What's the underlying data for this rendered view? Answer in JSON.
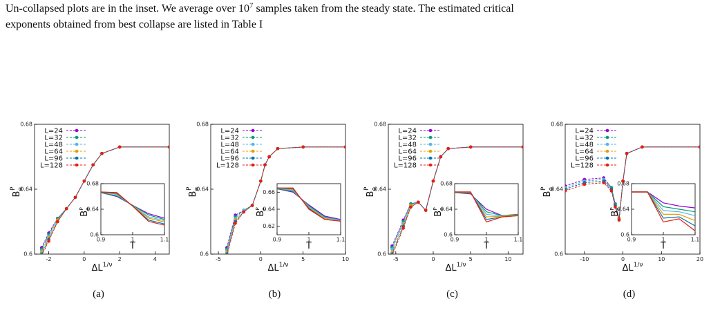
{
  "caption": {
    "line1_a": "Un-collapsed plots are in the inset. We average over 10",
    "line1_sup": "7",
    "line1_b": " samples taken from the steady state. The estimated critical",
    "line2": "exponents obtained from best collapse are listed in Table I"
  },
  "chart_data": [
    {
      "type": "line",
      "label": "(a)",
      "x_label": {
        "base": "ΔL",
        "sup": "1/ν"
      },
      "y_label": {
        "base": "B",
        "sup": "P",
        "sub": "e"
      },
      "xlim": [
        -2.8,
        4.8
      ],
      "xticks": [
        -2,
        0,
        2,
        4
      ],
      "ylim": [
        0.6,
        0.68
      ],
      "yticks": [
        0.6,
        0.64,
        0.68
      ],
      "x": [
        -2.4,
        -2,
        -1.5,
        -1,
        -0.5,
        0,
        0.5,
        1,
        2,
        4.8
      ],
      "series": [
        {
          "name": "L=24",
          "color": "#9400d3",
          "values": [
            0.604,
            0.613,
            0.622,
            0.628,
            0.635,
            0.645,
            0.655,
            0.662,
            0.666,
            0.666
          ]
        },
        {
          "name": "L=32",
          "color": "#009e73",
          "values": [
            0.603,
            0.612,
            0.622,
            0.628,
            0.635,
            0.645,
            0.655,
            0.662,
            0.666,
            0.666
          ]
        },
        {
          "name": "L=48",
          "color": "#56b4e9",
          "values": [
            0.602,
            0.611,
            0.621,
            0.628,
            0.635,
            0.645,
            0.655,
            0.662,
            0.666,
            0.666
          ]
        },
        {
          "name": "L=64",
          "color": "#e69f00",
          "values": [
            0.601,
            0.61,
            0.621,
            0.628,
            0.635,
            0.645,
            0.655,
            0.662,
            0.666,
            0.666
          ]
        },
        {
          "name": "L=96",
          "color": "#0072b2",
          "values": [
            0.6,
            0.609,
            0.62,
            0.628,
            0.635,
            0.645,
            0.655,
            0.662,
            0.666,
            0.666
          ]
        },
        {
          "name": "L=128",
          "color": "#e51e10",
          "values": [
            0.599,
            0.608,
            0.62,
            0.628,
            0.635,
            0.645,
            0.655,
            0.662,
            0.666,
            0.666
          ]
        }
      ],
      "inset": {
        "x_label": "T",
        "xlim": [
          0.9,
          1.1
        ],
        "xticks": [
          0.9,
          1,
          1.1
        ],
        "ylim": [
          0.6,
          0.68
        ],
        "yticks": [
          0.6,
          0.64,
          0.68
        ],
        "x": [
          0.9,
          0.95,
          1,
          1.05,
          1.1
        ],
        "values": [
          [
            0.666,
            0.66,
            0.646,
            0.633,
            0.626
          ],
          [
            0.666,
            0.661,
            0.646,
            0.631,
            0.624
          ],
          [
            0.667,
            0.663,
            0.645,
            0.628,
            0.622
          ],
          [
            0.667,
            0.664,
            0.645,
            0.626,
            0.62
          ],
          [
            0.667,
            0.665,
            0.645,
            0.623,
            0.617
          ],
          [
            0.667,
            0.666,
            0.645,
            0.621,
            0.615
          ]
        ]
      }
    },
    {
      "type": "line",
      "label": "(b)",
      "x_label": {
        "base": "ΔL",
        "sup": "1/ν"
      },
      "y_label": {
        "base": "B",
        "sup": "P",
        "sub": "e"
      },
      "xlim": [
        -5.9,
        10
      ],
      "xticks": [
        -5,
        0,
        5,
        10
      ],
      "ylim": [
        0.6,
        0.68
      ],
      "yticks": [
        0.6,
        0.64,
        0.68
      ],
      "x": [
        -4,
        -3,
        -2,
        -1,
        0,
        0.5,
        1,
        2,
        5,
        10
      ],
      "series": [
        {
          "name": "L=24",
          "color": "#9400d3",
          "values": [
            0.604,
            0.624,
            0.627,
            0.63,
            0.645,
            0.655,
            0.66,
            0.665,
            0.666,
            0.666
          ]
        },
        {
          "name": "L=32",
          "color": "#009e73",
          "values": [
            0.603,
            0.623,
            0.627,
            0.63,
            0.645,
            0.655,
            0.66,
            0.665,
            0.666,
            0.666
          ]
        },
        {
          "name": "L=48",
          "color": "#56b4e9",
          "values": [
            0.602,
            0.622,
            0.627,
            0.63,
            0.645,
            0.655,
            0.66,
            0.665,
            0.666,
            0.666
          ]
        },
        {
          "name": "L=64",
          "color": "#e69f00",
          "values": [
            0.601,
            0.621,
            0.626,
            0.63,
            0.645,
            0.655,
            0.66,
            0.665,
            0.666,
            0.666
          ]
        },
        {
          "name": "L=96",
          "color": "#0072b2",
          "values": [
            0.6,
            0.62,
            0.626,
            0.63,
            0.645,
            0.655,
            0.66,
            0.665,
            0.666,
            0.666
          ]
        },
        {
          "name": "L=128",
          "color": "#e51e10",
          "values": [
            0.599,
            0.619,
            0.626,
            0.63,
            0.645,
            0.655,
            0.66,
            0.665,
            0.666,
            0.666
          ]
        }
      ],
      "inset": {
        "x_label": "T",
        "xlim": [
          0.9,
          1.1
        ],
        "xticks": [
          0.9,
          1,
          1.1
        ],
        "ylim": [
          0.61,
          0.67
        ],
        "yticks": [
          0.62,
          0.64,
          0.66
        ],
        "x": [
          0.9,
          0.95,
          1,
          1.05,
          1.1
        ],
        "values": [
          [
            0.664,
            0.66,
            0.645,
            0.632,
            0.628
          ],
          [
            0.664,
            0.661,
            0.644,
            0.631,
            0.627
          ],
          [
            0.665,
            0.662,
            0.643,
            0.63,
            0.627
          ],
          [
            0.665,
            0.663,
            0.642,
            0.629,
            0.626
          ],
          [
            0.665,
            0.664,
            0.641,
            0.628,
            0.626
          ],
          [
            0.665,
            0.665,
            0.64,
            0.628,
            0.626
          ]
        ]
      }
    },
    {
      "type": "line",
      "label": "(c)",
      "x_label": {
        "base": "ΔL",
        "sup": "1/ν"
      },
      "y_label": {
        "base": "B",
        "sup": "P",
        "sub": "e"
      },
      "xlim": [
        -6,
        12
      ],
      "xticks": [
        -5,
        0,
        5,
        10
      ],
      "ylim": [
        0.6,
        0.68
      ],
      "yticks": [
        0.6,
        0.64,
        0.68
      ],
      "x": [
        -5.5,
        -4,
        -3,
        -2,
        -1,
        0,
        1,
        2,
        5,
        12
      ],
      "series": [
        {
          "name": "L=24",
          "color": "#9400d3",
          "values": [
            0.605,
            0.621,
            0.631,
            0.632,
            0.627,
            0.645,
            0.66,
            0.665,
            0.666,
            0.666
          ]
        },
        {
          "name": "L=32",
          "color": "#009e73",
          "values": [
            0.604,
            0.62,
            0.631,
            0.632,
            0.627,
            0.645,
            0.66,
            0.665,
            0.666,
            0.666
          ]
        },
        {
          "name": "L=48",
          "color": "#56b4e9",
          "values": [
            0.603,
            0.619,
            0.63,
            0.632,
            0.627,
            0.645,
            0.66,
            0.665,
            0.666,
            0.666
          ]
        },
        {
          "name": "L=64",
          "color": "#e69f00",
          "values": [
            0.601,
            0.618,
            0.63,
            0.632,
            0.627,
            0.645,
            0.66,
            0.665,
            0.666,
            0.666
          ]
        },
        {
          "name": "L=96",
          "color": "#0072b2",
          "values": [
            0.6,
            0.617,
            0.629,
            0.632,
            0.627,
            0.645,
            0.66,
            0.665,
            0.666,
            0.666
          ]
        },
        {
          "name": "L=128",
          "color": "#e51e10",
          "values": [
            0.599,
            0.616,
            0.629,
            0.632,
            0.627,
            0.645,
            0.66,
            0.665,
            0.666,
            0.666
          ]
        }
      ],
      "inset": {
        "x_label": "T",
        "xlim": [
          0.9,
          1.1
        ],
        "xticks": [
          0.9,
          1,
          1.1
        ],
        "ylim": [
          0.6,
          0.68
        ],
        "yticks": [
          0.6,
          0.64,
          0.68
        ],
        "x": [
          0.9,
          0.95,
          1,
          1.05,
          1.1
        ],
        "values": [
          [
            0.666,
            0.664,
            0.64,
            0.63,
            0.632
          ],
          [
            0.666,
            0.665,
            0.636,
            0.63,
            0.632
          ],
          [
            0.667,
            0.666,
            0.632,
            0.629,
            0.631
          ],
          [
            0.667,
            0.666,
            0.628,
            0.629,
            0.631
          ],
          [
            0.667,
            0.667,
            0.624,
            0.628,
            0.63
          ],
          [
            0.667,
            0.667,
            0.62,
            0.628,
            0.63
          ]
        ]
      }
    },
    {
      "type": "line",
      "label": "(d)",
      "x_label": {
        "base": "ΔL",
        "sup": "1/ν"
      },
      "y_label": {
        "base": "B",
        "sup": "P",
        "sub": "e"
      },
      "xlim": [
        -15,
        20
      ],
      "xticks": [
        -10,
        0,
        10,
        20
      ],
      "ylim": [
        0.6,
        0.68
      ],
      "yticks": [
        0.6,
        0.64,
        0.68
      ],
      "x": [
        -15,
        -10,
        -5,
        -3,
        -2,
        -1,
        0,
        1,
        5,
        20
      ],
      "series": [
        {
          "name": "L=24",
          "color": "#9400d3",
          "values": [
            0.642,
            0.646,
            0.647,
            0.641,
            0.631,
            0.622,
            0.645,
            0.662,
            0.666,
            0.666
          ]
        },
        {
          "name": "L=32",
          "color": "#009e73",
          "values": [
            0.641,
            0.645,
            0.646,
            0.641,
            0.631,
            0.622,
            0.645,
            0.662,
            0.666,
            0.666
          ]
        },
        {
          "name": "L=48",
          "color": "#56b4e9",
          "values": [
            0.641,
            0.645,
            0.646,
            0.64,
            0.63,
            0.622,
            0.645,
            0.662,
            0.666,
            0.666
          ]
        },
        {
          "name": "L=64",
          "color": "#e69f00",
          "values": [
            0.64,
            0.644,
            0.645,
            0.64,
            0.63,
            0.622,
            0.645,
            0.662,
            0.666,
            0.666
          ]
        },
        {
          "name": "L=96",
          "color": "#0072b2",
          "values": [
            0.64,
            0.644,
            0.645,
            0.64,
            0.63,
            0.621,
            0.645,
            0.662,
            0.666,
            0.666
          ]
        },
        {
          "name": "L=128",
          "color": "#e51e10",
          "values": [
            0.639,
            0.643,
            0.644,
            0.639,
            0.629,
            0.621,
            0.645,
            0.662,
            0.666,
            0.666
          ]
        }
      ],
      "inset": {
        "x_label": "T",
        "xlim": [
          0.9,
          1.1
        ],
        "xticks": [
          0.9,
          1,
          1.1
        ],
        "ylim": [
          0.6,
          0.68
        ],
        "yticks": [
          0.6,
          0.64,
          0.68
        ],
        "x": [
          0.9,
          0.95,
          1,
          1.05,
          1.1
        ],
        "values": [
          [
            0.667,
            0.667,
            0.65,
            0.645,
            0.642
          ],
          [
            0.667,
            0.667,
            0.644,
            0.64,
            0.636
          ],
          [
            0.667,
            0.667,
            0.638,
            0.636,
            0.63
          ],
          [
            0.667,
            0.667,
            0.632,
            0.632,
            0.622
          ],
          [
            0.667,
            0.667,
            0.626,
            0.628,
            0.614
          ],
          [
            0.667,
            0.667,
            0.62,
            0.625,
            0.606
          ]
        ]
      }
    }
  ]
}
